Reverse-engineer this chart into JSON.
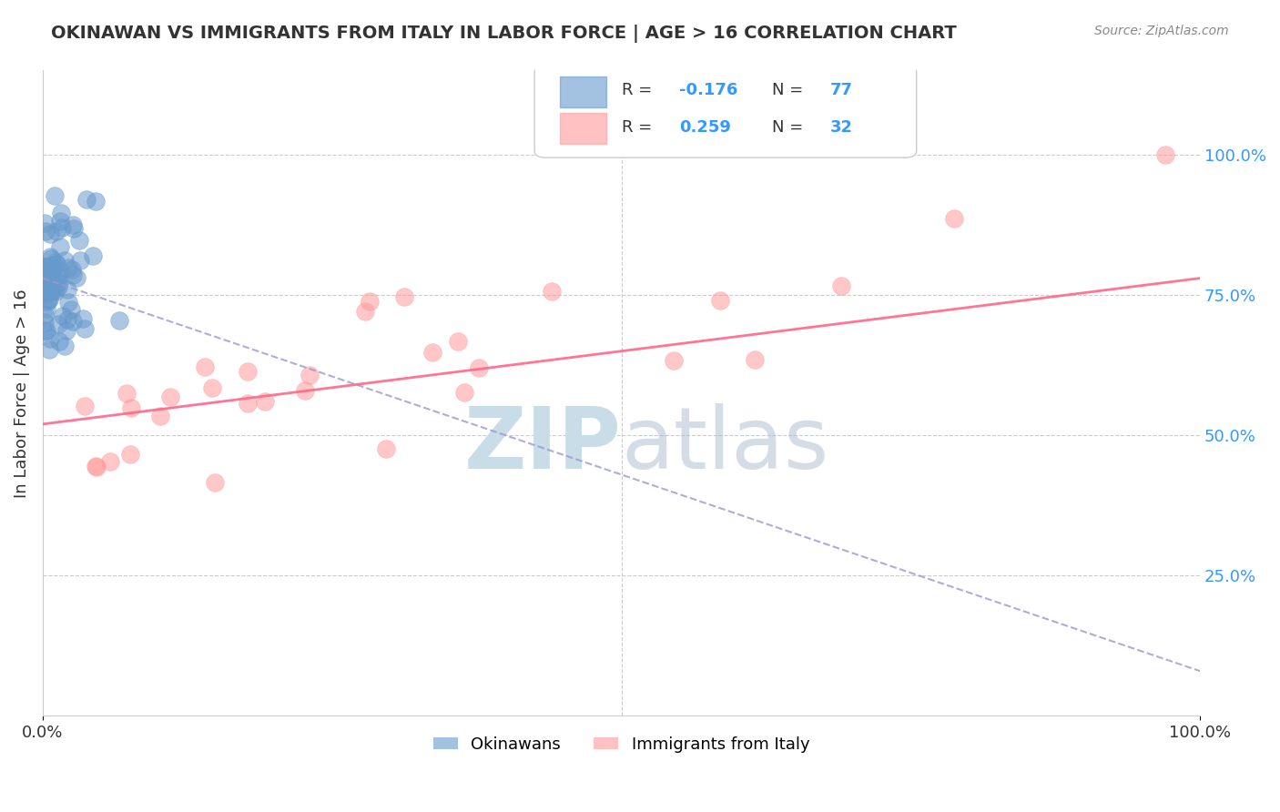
{
  "title": "OKINAWAN VS IMMIGRANTS FROM ITALY IN LABOR FORCE | AGE > 16 CORRELATION CHART",
  "source": "Source: ZipAtlas.com",
  "ylabel": "In Labor Force | Age > 16",
  "okinawan_R": -0.176,
  "okinawan_N": 77,
  "italy_R": 0.259,
  "italy_N": 32,
  "blue_color": "#6699CC",
  "pink_color": "#FF9999",
  "blue_line_color": "#9999CC",
  "pink_line_color": "#FF6688",
  "title_color": "#333333",
  "source_color": "#888888",
  "legend_R_color": "#333333",
  "legend_N_color": "#3399FF",
  "watermark_color": "#C8DDE8",
  "background_color": "#FFFFFF",
  "grid_color": "#CCCCCC",
  "xlim": [
    0.0,
    1.0
  ],
  "ylim": [
    0.0,
    1.15
  ],
  "blue_trend_intercept": 0.78,
  "blue_trend_slope": -0.7,
  "pink_trend_intercept": 0.52,
  "pink_trend_slope": 0.26
}
